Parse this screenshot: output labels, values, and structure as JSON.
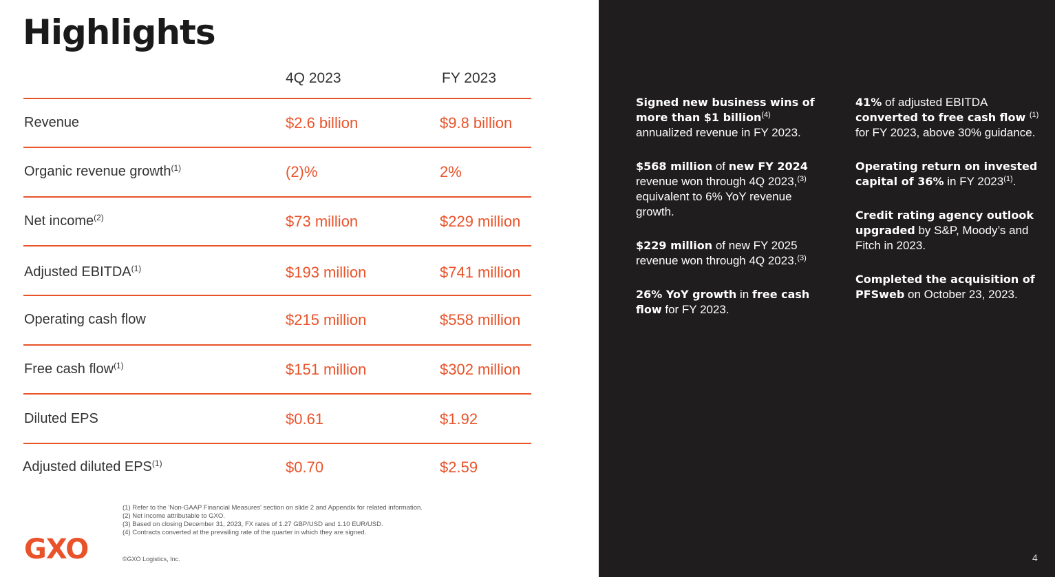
{
  "title": "Highlights",
  "table": {
    "headers": [
      "4Q 2023",
      "FY 2023"
    ],
    "rows": [
      {
        "label": "Revenue",
        "sup": "",
        "q4": "$2.6 billion",
        "fy": "$9.8 billion"
      },
      {
        "label": "Organic revenue growth",
        "sup": "(1)",
        "q4": "(2)%",
        "fy": "2%"
      },
      {
        "label": "Net income",
        "sup": "(2)",
        "q4": "$73 million",
        "fy": "$229 million"
      },
      {
        "label": "Adjusted EBITDA",
        "sup": "(1)",
        "q4": "$193 million",
        "fy": "$741 million"
      },
      {
        "label": "Operating cash flow",
        "sup": "",
        "q4": "$215 million",
        "fy": "$558 million"
      },
      {
        "label": "Free cash flow",
        "sup": "(1)",
        "q4": "$151 million",
        "fy": "$302 million"
      },
      {
        "label": "Diluted EPS",
        "sup": "",
        "q4": "$0.61",
        "fy": "$1.92"
      },
      {
        "label": "Adjusted diluted EPS",
        "sup": "(1)",
        "q4": "$0.70",
        "fy": "$2.59"
      }
    ]
  },
  "footnotes": [
    "(1) Refer to the 'Non-GAAP Financial Measures' section on slide 2 and Appendix for related information.",
    "(2) Net income attributable to GXO.",
    "(3) Based on closing December 31, 2023, FX rates of 1.27 GBP/USD and 1.10 EUR/USD.",
    "(4) Contracts converted at the prevailing rate of the quarter in which they are signed."
  ],
  "logo": "GXO",
  "copyright": "©GXO Logistics, Inc.",
  "page_number": "4",
  "highlights_left": [
    {
      "bold1": "Signed new business wins of more than $1 billion",
      "sup1": "(4)",
      "text1": " annualized revenue in FY 2023."
    },
    {
      "bold1": "$568 million",
      "text1": " of ",
      "bold2": "new FY 2024",
      "text2": " revenue won through 4Q 2023,",
      "sup2": "(3)",
      "text3": " equivalent to 6% YoY revenue growth."
    },
    {
      "bold1": "$229 million",
      "text1": " of new FY 2025 revenue won through 4Q 2023.",
      "sup2": "(3)"
    },
    {
      "bold1": "26% YoY growth",
      "text1": " in ",
      "bold2": "free cash flow",
      "text2": " for FY 2023."
    }
  ],
  "highlights_right": [
    {
      "bold1": "41%",
      "text1": " of adjusted EBITDA ",
      "bold2": "converted to free cash flow ",
      "sup2": "(1)",
      "text2": " for FY 2023, above 30% guidance."
    },
    {
      "bold1": "Operating return on invested capital of 36%",
      "text1": " in FY 2023",
      "sup1": "(1)",
      "text2": "."
    },
    {
      "bold1": "Credit rating agency outlook upgraded",
      "text1": " by S&P, Moody’s and Fitch in 2023."
    },
    {
      "bold1": "Completed the acquisition of PFSweb",
      "text1": " on October 23, 2023."
    }
  ]
}
